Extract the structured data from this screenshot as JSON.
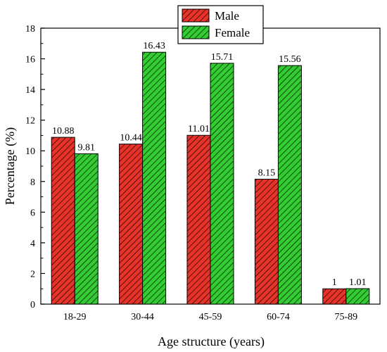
{
  "chart_data": {
    "type": "bar",
    "title": "",
    "xlabel": "Age structure (years)",
    "ylabel": "Percentage (%)",
    "categories": [
      "18-29",
      "30-44",
      "45-59",
      "60-74",
      "75-89"
    ],
    "ylim": [
      0,
      18
    ],
    "yticks": [
      0,
      2,
      4,
      6,
      8,
      10,
      12,
      14,
      16,
      18
    ],
    "grid": false,
    "legend_position": "top-center",
    "series": [
      {
        "name": "Male",
        "color": "#e8332a",
        "values": [
          10.88,
          10.44,
          11.01,
          8.15,
          1
        ],
        "labels": [
          "10.88",
          "10.44",
          "11.01",
          "8.15",
          "1"
        ]
      },
      {
        "name": "Female",
        "color": "#33cc33",
        "values": [
          9.81,
          16.43,
          15.71,
          15.56,
          1.01
        ],
        "labels": [
          "9.81",
          "16.43",
          "15.71",
          "15.56",
          "1.01"
        ]
      }
    ]
  }
}
